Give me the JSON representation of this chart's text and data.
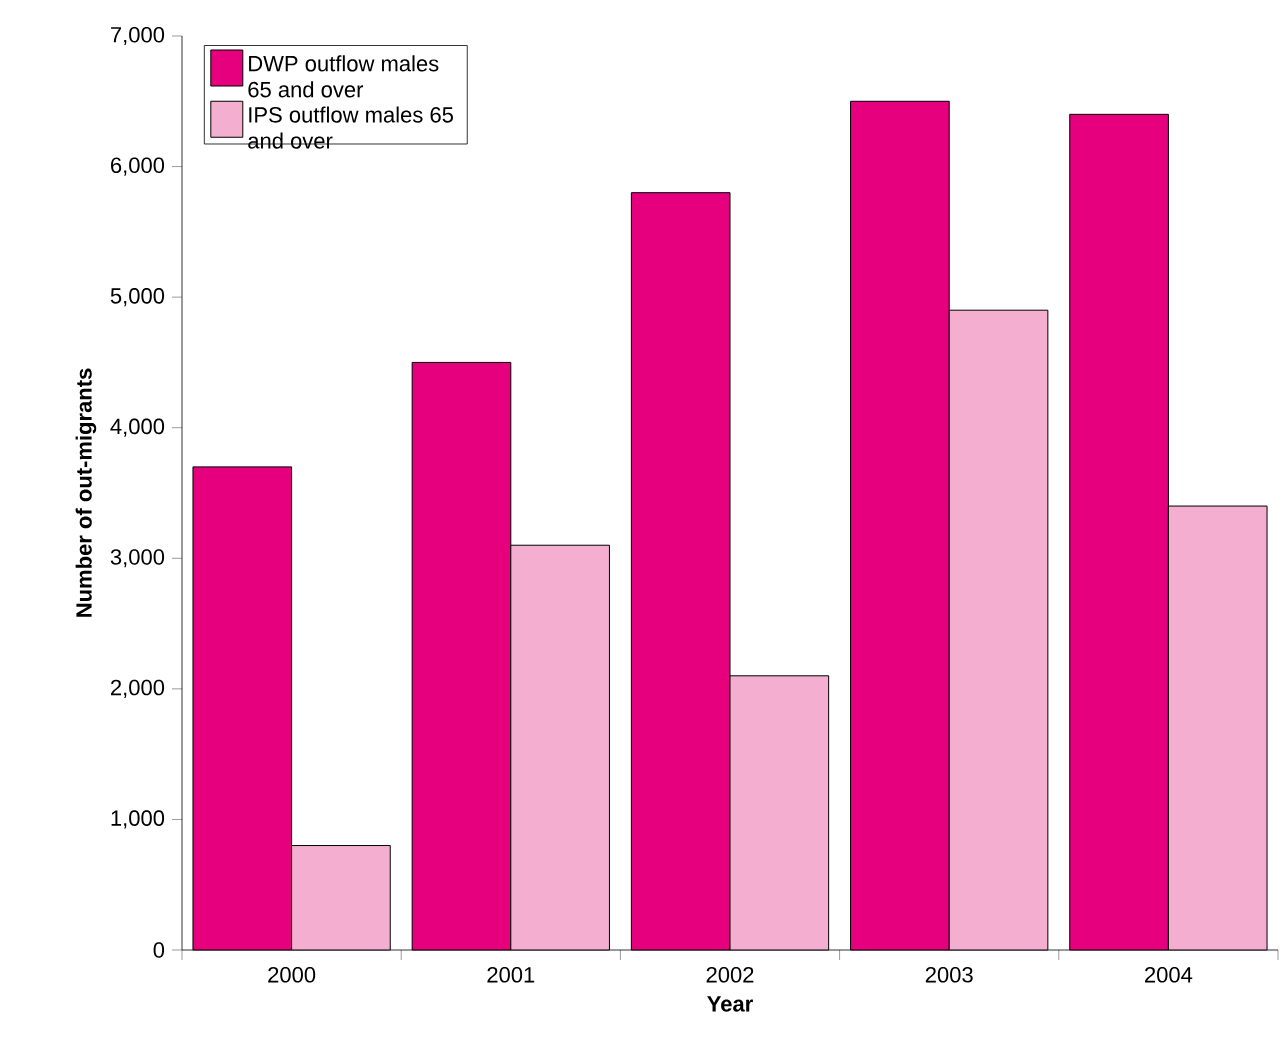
{
  "chart_data": {
    "type": "bar",
    "xlabel": "Year",
    "ylabel": "Number of out-migrants",
    "categories": [
      "2000",
      "2001",
      "2002",
      "2003",
      "2004"
    ],
    "series": [
      {
        "name": "DWP outflow males 65 and over",
        "color": "#e6007e",
        "values": [
          3700,
          4500,
          5800,
          6500,
          6400
        ]
      },
      {
        "name": "IPS outflow males 65 and over",
        "color": "#f4afd0",
        "values": [
          800,
          3100,
          2100,
          4900,
          3400
        ]
      }
    ],
    "ylim": [
      0,
      7000
    ],
    "yticks": [
      0,
      {
        "value": 1000,
        "label": "1,000"
      },
      {
        "value": 2000,
        "label": "2,000"
      },
      {
        "value": 3000,
        "label": "3,000"
      },
      {
        "value": 4000,
        "label": "4,000"
      },
      {
        "value": 5000,
        "label": "5,000"
      },
      {
        "value": 6000,
        "label": "6,000"
      },
      {
        "value": 7000,
        "label": "7,000"
      }
    ],
    "legend": "top left",
    "grid": false
  }
}
